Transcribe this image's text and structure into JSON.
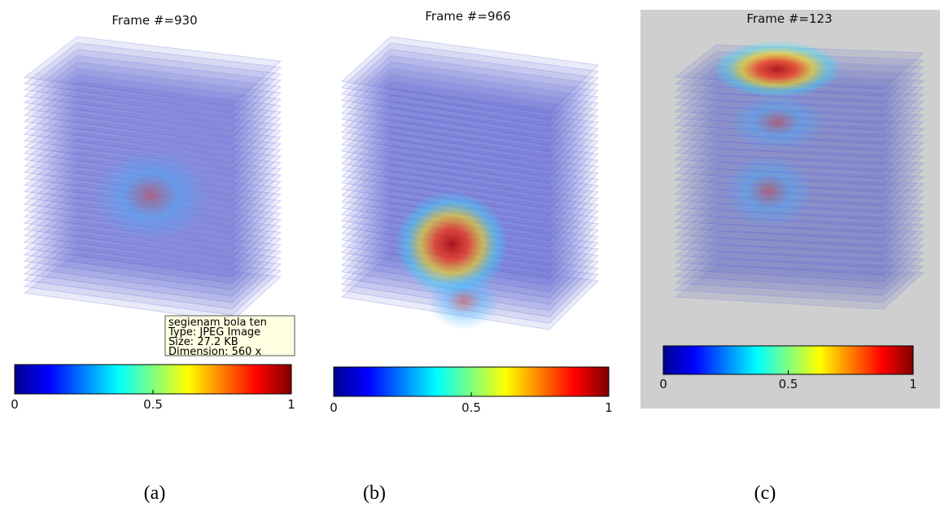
{
  "panels": [
    {
      "title": "Frame #=930",
      "caption": "(a)",
      "colorbar": {
        "lim": [
          0,
          1
        ],
        "ticks": [
          0,
          0.5,
          1
        ]
      }
    },
    {
      "title": "Frame #=966",
      "caption": "(b)",
      "colorbar": {
        "lim": [
          0,
          1
        ],
        "ticks": [
          0,
          0.5,
          1
        ]
      }
    },
    {
      "title": "Frame #=123",
      "caption": "(c)",
      "colorbar": {
        "lim": [
          0,
          1
        ],
        "ticks": [
          0,
          0.5,
          1
        ]
      }
    }
  ],
  "tooltip": {
    "lines": [
      "segienam bola ten",
      "Type: JPEG Image",
      "Size: 27.2 KB",
      "Dimension: 560 x"
    ]
  }
}
